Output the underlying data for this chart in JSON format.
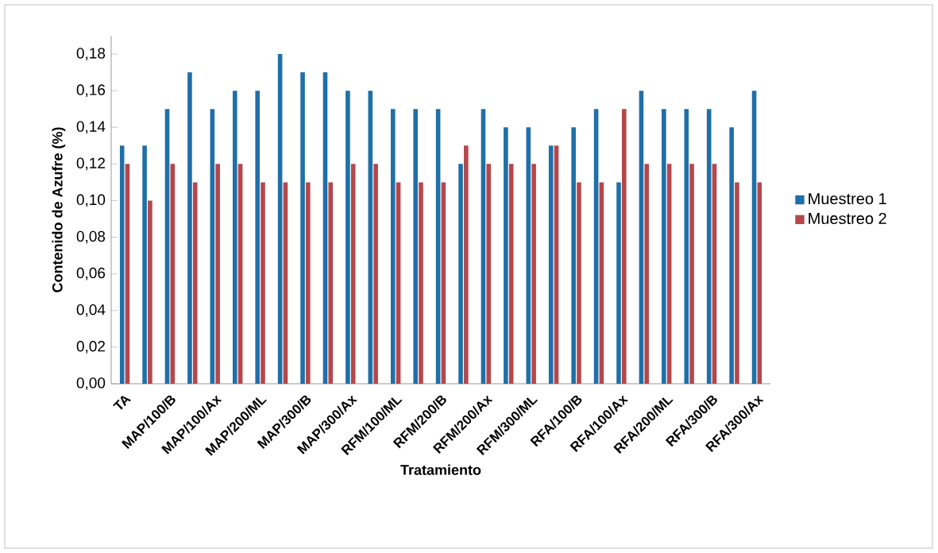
{
  "chart_data": {
    "type": "bar",
    "xlabel": "Tratamiento",
    "ylabel": "Contenido de Azufre  (%)",
    "categories": [
      "TA",
      null,
      "MAP/100/B",
      null,
      "MAP/100/Ax",
      null,
      "MAP/200/ML",
      null,
      "MAP/300/B",
      null,
      "MAP/300/Ax",
      null,
      "RFM/100/ML",
      null,
      "RFM/200/B",
      null,
      "RFM/200/Ax",
      null,
      "RFM/300/ML",
      null,
      "RFA/100/B",
      null,
      "RFA/100/Ax",
      null,
      "RFA/200/ML",
      null,
      "RFA/300/B",
      null,
      "RFA/300/Ax"
    ],
    "series": [
      {
        "name": "Muestreo 1",
        "color": "#1f6fa8",
        "values": [
          0.13,
          0.13,
          0.15,
          0.17,
          0.15,
          0.16,
          0.16,
          0.18,
          0.17,
          0.17,
          0.16,
          0.16,
          0.15,
          0.15,
          0.15,
          0.12,
          0.15,
          0.14,
          0.14,
          0.13,
          0.14,
          0.15,
          0.11,
          0.16,
          0.15,
          0.15,
          0.15,
          0.14,
          0.16
        ]
      },
      {
        "name": "Muestreo 2",
        "color": "#b5474b",
        "values": [
          0.12,
          0.1,
          0.12,
          0.11,
          0.12,
          0.12,
          0.11,
          0.11,
          0.11,
          0.11,
          0.12,
          0.12,
          0.11,
          0.11,
          0.11,
          0.13,
          0.12,
          0.12,
          0.12,
          0.13,
          0.11,
          0.11,
          0.15,
          0.12,
          0.12,
          0.12,
          0.12,
          0.11,
          0.11
        ]
      }
    ],
    "ylim": [
      0,
      0.19
    ],
    "yticks": [
      {
        "value": 0,
        "label": "0,00"
      },
      {
        "value": 0.02,
        "label": "0,02"
      },
      {
        "value": 0.04,
        "label": "0,04"
      },
      {
        "value": 0.06,
        "label": "0,06"
      },
      {
        "value": 0.08,
        "label": "0,08"
      },
      {
        "value": 0.1,
        "label": "0,10"
      },
      {
        "value": 0.12,
        "label": "0,12"
      },
      {
        "value": 0.14,
        "label": "0,14"
      },
      {
        "value": 0.16,
        "label": "0,16"
      },
      {
        "value": 0.18,
        "label": "0,18"
      }
    ],
    "legend": "right"
  }
}
